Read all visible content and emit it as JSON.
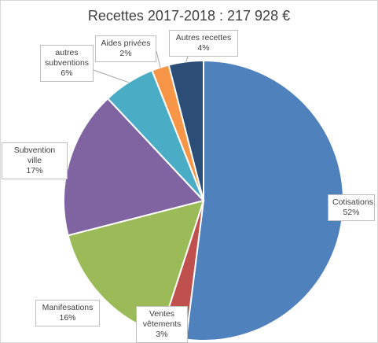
{
  "chart_data": {
    "type": "pie",
    "title": "Recettes 2017-2018 : 217 928 €",
    "slices": [
      {
        "label": "Cotisations",
        "value": 52,
        "percent_label": "52%",
        "color": "#4f81bd"
      },
      {
        "label": "Ventes vêtements",
        "label_lines": [
          "Ventes",
          "vêtements"
        ],
        "value": 3,
        "percent_label": "3%",
        "color": "#c0504d"
      },
      {
        "label": "Manifesations",
        "value": 16,
        "percent_label": "16%",
        "color": "#9bbb59"
      },
      {
        "label": "Subvention ville",
        "value": 17,
        "percent_label": "17%",
        "color": "#8064a2"
      },
      {
        "label": "autres subventions",
        "label_lines": [
          "autres",
          "subventions"
        ],
        "value": 6,
        "percent_label": "6%",
        "color": "#4bacc6"
      },
      {
        "label": "Aides privées",
        "value": 2,
        "percent_label": "2%",
        "color": "#f79646"
      },
      {
        "label": "Autres recettes",
        "value": 4,
        "percent_label": "4%",
        "color": "#2c4d75"
      }
    ],
    "legend": "none"
  }
}
